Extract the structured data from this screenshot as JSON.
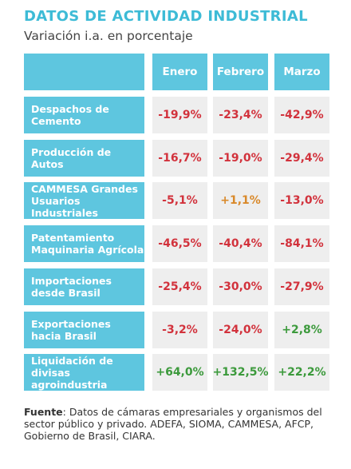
{
  "header": {
    "title": "DATOS DE ACTIVIDAD INDUSTRIAL",
    "subtitle": "Variación i.a. en porcentaje"
  },
  "table": {
    "columns": [
      "Enero",
      "Febrero",
      "Marzo"
    ],
    "rows": [
      {
        "label": "Despachos de\nCemento",
        "cells": [
          "-19,9%",
          "-23,4%",
          "-42,9%"
        ],
        "colors": [
          "#d2323c",
          "#d2323c",
          "#d2323c"
        ]
      },
      {
        "label": "Producción de\nAutos",
        "cells": [
          "-16,7%",
          "-19,0%",
          "-29,4%"
        ],
        "colors": [
          "#d2323c",
          "#d2323c",
          "#d2323c"
        ]
      },
      {
        "label": "CAMMESA Grandes\nUsuarios Industriales",
        "cells": [
          "-5,1%",
          "+1,1%",
          "-13,0%"
        ],
        "colors": [
          "#d2323c",
          "#d9892a",
          "#d2323c"
        ]
      },
      {
        "label": "Patentamiento\nMaquinaria Agrícola",
        "cells": [
          "-46,5%",
          "-40,4%",
          "-84,1%"
        ],
        "colors": [
          "#d2323c",
          "#d2323c",
          "#d2323c"
        ]
      },
      {
        "label": "Importaciones\ndesde Brasil",
        "cells": [
          "-25,4%",
          "-30,0%",
          "-27,9%"
        ],
        "colors": [
          "#d2323c",
          "#d2323c",
          "#d2323c"
        ]
      },
      {
        "label": "Exportaciones\nhacia Brasil",
        "cells": [
          "-3,2%",
          "-24,0%",
          "+2,8%"
        ],
        "colors": [
          "#d2323c",
          "#d2323c",
          "#3c9a3c"
        ]
      },
      {
        "label": "Liquidación de\ndivisas agroindustria",
        "cells": [
          "+64,0%",
          "+132,5%",
          "+22,2%"
        ],
        "colors": [
          "#3c9a3c",
          "#3c9a3c",
          "#3c9a3c"
        ]
      }
    ]
  },
  "footer": {
    "label": "Fuente",
    "text": ": Datos de cámaras empresariales y organismos del sector público y privado. ADEFA, SIOMA, CAMMESA, AFCP, Gobierno de Brasil, CIARA."
  }
}
